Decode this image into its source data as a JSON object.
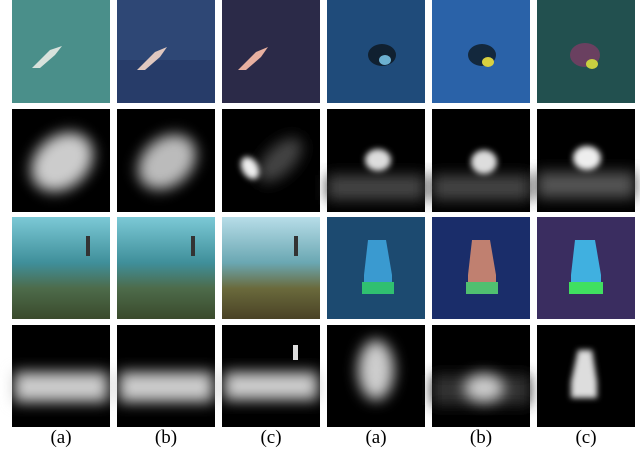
{
  "figure": {
    "labels": [
      "(a)",
      "(b)",
      "(c)",
      "(a)",
      "(b)",
      "(c)"
    ]
  }
}
